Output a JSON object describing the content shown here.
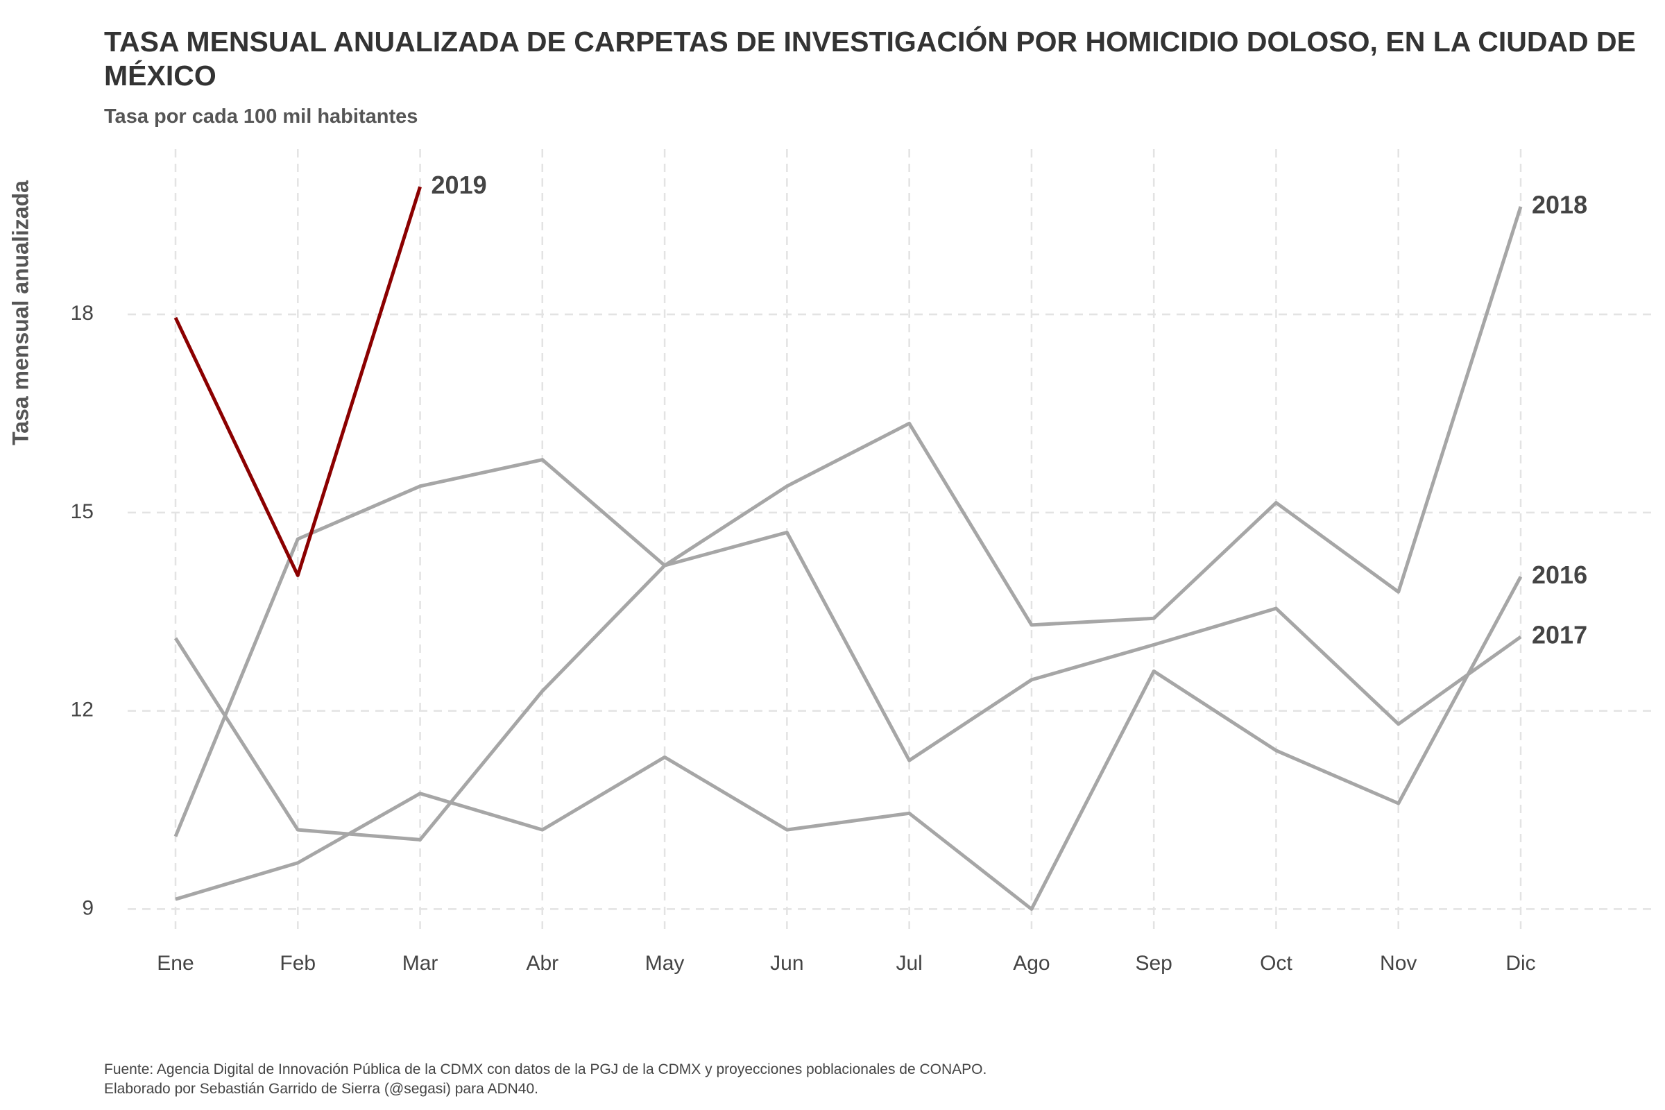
{
  "chart_data": {
    "type": "line",
    "title": "TASA MENSUAL ANUALIZADA DE CARPETAS DE INVESTIGACIÓN POR HOMICIDIO DOLOSO, EN LA CIUDAD DE MÉXICO",
    "subtitle": "Tasa por cada 100 mil habitantes",
    "y_label": "Tasa mensual anualizada",
    "source": "Fuente: Agencia Digital de Innovación Pública de la CDMX con datos de la PGJ de la CDMX y proyecciones poblacionales de CONAPO.",
    "credit": "Elaborado por Sebastián Garrido de Sierra (@segasi) para ADN40.",
    "categories": [
      "Ene",
      "Feb",
      "Mar",
      "Abr",
      "May",
      "Jun",
      "Jul",
      "Ago",
      "Sep",
      "Oct",
      "Nov",
      "Dic"
    ],
    "series": [
      {
        "name": "2016",
        "color": "#a6a6a6",
        "values": [
          9.15,
          9.7,
          10.75,
          10.2,
          11.3,
          10.2,
          10.45,
          9.0,
          12.6,
          11.4,
          10.6,
          14.03
        ]
      },
      {
        "name": "2017",
        "color": "#a6a6a6",
        "values": [
          13.1,
          10.2,
          10.05,
          12.3,
          14.2,
          14.7,
          11.25,
          12.47,
          13.0,
          13.55,
          11.8,
          13.12
        ]
      },
      {
        "name": "2018",
        "color": "#a6a6a6",
        "values": [
          10.1,
          14.6,
          15.4,
          15.8,
          14.2,
          15.4,
          16.35,
          13.3,
          13.4,
          15.15,
          13.8,
          19.63
        ]
      },
      {
        "name": "2019",
        "color": "#8b0000",
        "values": [
          17.95,
          14.05,
          19.93,
          null,
          null,
          null,
          null,
          null,
          null,
          null,
          null,
          null
        ]
      }
    ],
    "ylim": [
      8.7,
      20.5
    ],
    "yticks": [
      9,
      12,
      15,
      18
    ],
    "grid": true
  }
}
